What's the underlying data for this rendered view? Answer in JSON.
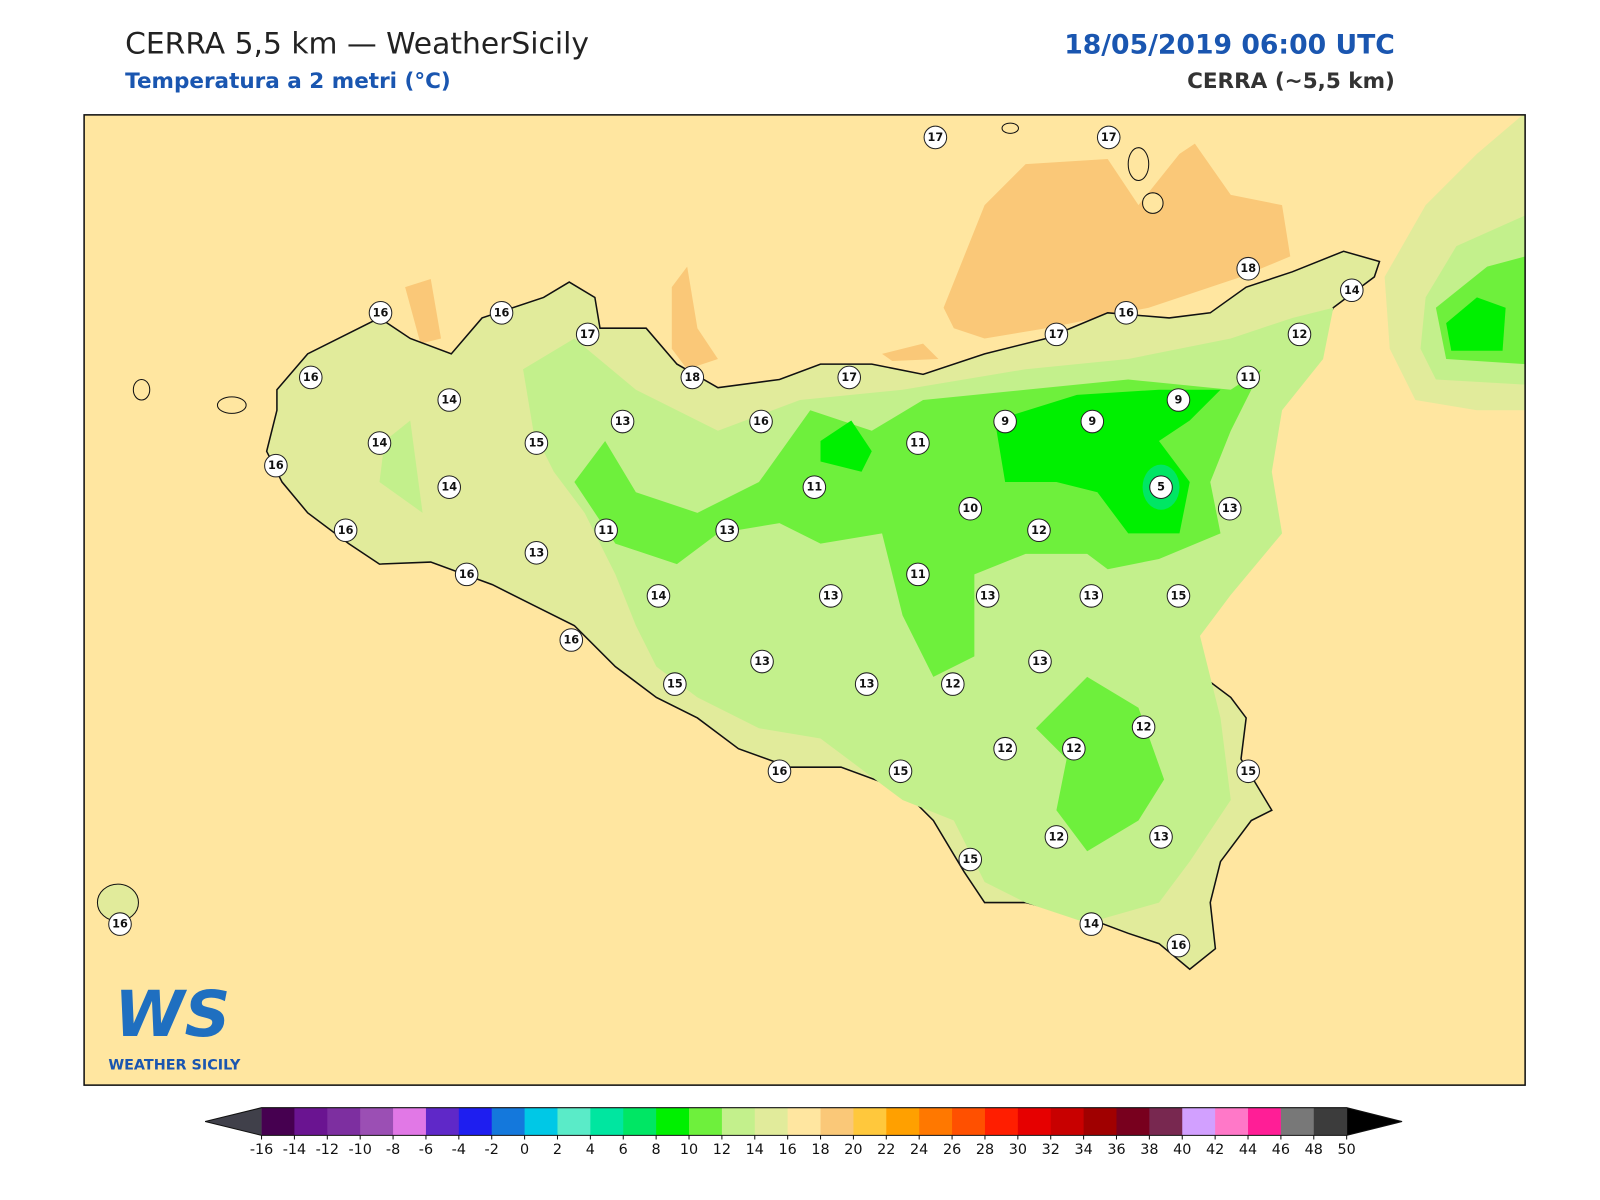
{
  "header": {
    "title": "CERRA 5,5 km — WeatherSicily",
    "subtitle": "Temperatura a 2 metri (°C)",
    "date": "18/05/2019 06:00 UTC",
    "model": "CERRA (~5,5 km)"
  },
  "stations": {
    "values": [
      17,
      17,
      18,
      14,
      12,
      16,
      17,
      11,
      9,
      9,
      9,
      11,
      17,
      16,
      18,
      13,
      17,
      16,
      16,
      16,
      14,
      15,
      14,
      16,
      14,
      16,
      13,
      11,
      13,
      11,
      10,
      12,
      5,
      13,
      11,
      13,
      13,
      13,
      15,
      16,
      14,
      16,
      13,
      13,
      12,
      13,
      15,
      12,
      12,
      12,
      15,
      16,
      15,
      13,
      12,
      15,
      14,
      16,
      16
    ]
  },
  "colorbar": {
    "ticks": [
      -16,
      -14,
      -12,
      -10,
      -8,
      -6,
      -4,
      -2,
      0,
      2,
      4,
      6,
      8,
      10,
      12,
      14,
      16,
      18,
      20,
      22,
      24,
      26,
      28,
      30,
      32,
      34,
      36,
      38,
      40,
      42,
      44,
      46,
      48,
      50
    ],
    "colors": [
      "#460050",
      "#6a1491",
      "#7d2fa0",
      "#9b4fb4",
      "#e178e6",
      "#5f28c8",
      "#1e1ef0",
      "#1478dc",
      "#00c8e6",
      "#5aebc8",
      "#00e6a0",
      "#00e664",
      "#00f000",
      "#6ef03c",
      "#c3f08c",
      "#e1eb9b",
      "#ffe6a0",
      "#fac878",
      "#ffc83c",
      "#ffa000",
      "#ff7800",
      "#ff5000",
      "#ff1e00",
      "#e60000",
      "#c80000",
      "#a00000",
      "#78001e",
      "#782850",
      "#d2a0ff",
      "#ff78c8",
      "#ff1e96",
      "#787878",
      "#3c3c3c"
    ],
    "under_color": "#40404a",
    "over_color": "#000000"
  },
  "logo": {
    "mark": "WS",
    "text": "WEATHER SICILY"
  }
}
